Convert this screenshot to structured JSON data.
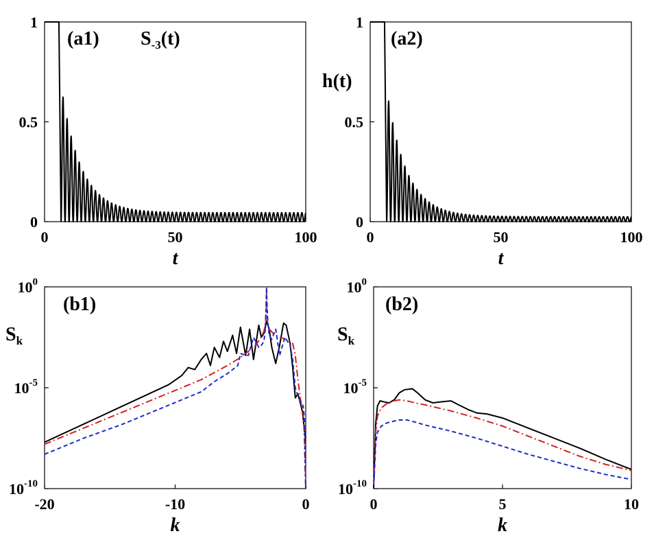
{
  "chart_data": [
    {
      "id": "a1",
      "type": "line",
      "panel_label": "(a1)",
      "inset_label": {
        "base": "S",
        "sub": "-3",
        "suffix": "(t)"
      },
      "ylabel": "",
      "xlabel": "t",
      "xlim": [
        0,
        100
      ],
      "ylim": [
        0,
        1
      ],
      "xticks": [
        {
          "v": 0,
          "t": "0"
        },
        {
          "v": 50,
          "t": "50"
        },
        {
          "v": 100,
          "t": "100"
        }
      ],
      "yticks": [
        {
          "v": 0,
          "t": "0"
        },
        {
          "v": 0.5,
          "t": "0.5"
        },
        {
          "v": 1,
          "t": "1"
        }
      ],
      "signal": {
        "quench_t": 5.5,
        "period": 1.55,
        "amp": 0.64,
        "tau": 7.5,
        "floor": 0.045
      },
      "series": [
        {
          "name": "S-3(t)",
          "color": "#000000"
        }
      ]
    },
    {
      "id": "a2",
      "type": "line",
      "panel_label": "(a2)",
      "ylabel": "h(t)",
      "xlabel": "t",
      "xlim": [
        0,
        100
      ],
      "ylim": [
        0,
        1
      ],
      "xticks": [
        {
          "v": 0,
          "t": "0"
        },
        {
          "v": 50,
          "t": "50"
        },
        {
          "v": 100,
          "t": "100"
        }
      ],
      "yticks": [
        {
          "v": 0,
          "t": "0"
        },
        {
          "v": 0.5,
          "t": "0.5"
        },
        {
          "v": 1,
          "t": "1"
        }
      ],
      "signal": {
        "quench_t": 5.5,
        "period": 1.55,
        "amp": 0.64,
        "tau": 7.5,
        "floor": 0.025
      },
      "series": [
        {
          "name": "h(t)",
          "color": "#000000"
        }
      ]
    },
    {
      "id": "b1",
      "type": "line",
      "panel_label": "(b1)",
      "ylabel": {
        "base": "S",
        "sub": "k"
      },
      "xlabel": "k",
      "yscale": "log",
      "xlim": [
        -20,
        0
      ],
      "ylim": [
        -10,
        0
      ],
      "xticks": [
        {
          "v": -20,
          "t": "-20"
        },
        {
          "v": -10,
          "t": "-10"
        },
        {
          "v": 0,
          "t": "0"
        }
      ],
      "yticks": [
        {
          "v": 0,
          "t": "10",
          "e": "0"
        },
        {
          "v": -5,
          "t": "10",
          "e": "-5"
        },
        {
          "v": -10,
          "t": "10",
          "e": "-10"
        }
      ],
      "series": [
        {
          "name": "black",
          "color": "#000000",
          "dash": "",
          "x": [
            -20,
            -18,
            -16,
            -14,
            -12,
            -10.5,
            -9.5,
            -9,
            -8.5,
            -8,
            -7.6,
            -7.3,
            -7,
            -6.6,
            -6.3,
            -6,
            -5.6,
            -5.3,
            -5,
            -4.6,
            -4.3,
            -4,
            -3.6,
            -3.4,
            -3.2,
            -3,
            -2.8,
            -2.6,
            -2.3,
            -2,
            -1.7,
            -1.5,
            -1.2,
            -1,
            -0.8,
            -0.6,
            -0.4,
            -0.25,
            -0.15,
            -0.05,
            0
          ],
          "y": [
            -7.7,
            -7.1,
            -6.5,
            -5.9,
            -5.3,
            -4.85,
            -4.4,
            -4.0,
            -4.1,
            -3.6,
            -3.3,
            -3.9,
            -3.0,
            -3.5,
            -2.7,
            -3.2,
            -2.4,
            -3.3,
            -2.0,
            -3.4,
            -2.1,
            -3.6,
            -1.9,
            -2.5,
            -2.3,
            -1.7,
            -2.1,
            -3.0,
            -3.8,
            -2.9,
            -1.8,
            -1.9,
            -2.8,
            -4.0,
            -5.5,
            -5.3,
            -5.8,
            -6.2,
            -6.8,
            -7.4,
            -7.5
          ]
        },
        {
          "name": "red",
          "color": "#d42020",
          "dash": "10 4 2 4",
          "x": [
            -20,
            -17,
            -14,
            -11,
            -8,
            -6,
            -5,
            -4,
            -3.5,
            -3.2,
            -3.08,
            -3.02,
            -3,
            -2.98,
            -2.92,
            -2.8,
            -2.5,
            -2,
            -1.5,
            -1,
            -0.8,
            -0.6,
            -0.4,
            -0.2,
            -0.1,
            -0.05,
            0
          ],
          "y": [
            -7.8,
            -7.0,
            -6.2,
            -5.4,
            -4.6,
            -3.9,
            -3.5,
            -3.0,
            -2.6,
            -2.2,
            -1.8,
            -0.8,
            -0.2,
            -0.9,
            -1.8,
            -2.1,
            -2.3,
            -2.5,
            -2.6,
            -2.8,
            -3.4,
            -4.6,
            -5.6,
            -6.2,
            -7.5,
            -9.0,
            -10.0
          ]
        },
        {
          "name": "blue",
          "color": "#1a2cc9",
          "dash": "6 4",
          "x": [
            -20,
            -17,
            -14,
            -11,
            -8,
            -7,
            -6,
            -5.2,
            -5,
            -4.6,
            -4.4,
            -4,
            -3.6,
            -3.4,
            -3.2,
            -3.08,
            -3.02,
            -3,
            -2.98,
            -2.92,
            -2.8,
            -2.6,
            -2.3,
            -2,
            -1.6,
            -1.2,
            -1,
            -0.8,
            -0.6,
            -0.4,
            -0.2,
            -0.1,
            -0.05,
            0
          ],
          "y": [
            -8.3,
            -7.5,
            -6.8,
            -6.0,
            -5.2,
            -4.7,
            -4.3,
            -3.9,
            -3.3,
            -3.4,
            -3.4,
            -2.5,
            -3.0,
            -2.9,
            -2.7,
            -2.0,
            -0.5,
            0.0,
            -0.6,
            -1.6,
            -2.4,
            -2.6,
            -2.1,
            -3.4,
            -2.5,
            -2.9,
            -3.6,
            -5.0,
            -5.4,
            -5.7,
            -5.9,
            -6.5,
            -8.5,
            -10.0
          ]
        }
      ]
    },
    {
      "id": "b2",
      "type": "line",
      "panel_label": "(b2)",
      "ylabel": {
        "base": "S",
        "sub": "k"
      },
      "xlabel": "k",
      "yscale": "log",
      "xlim": [
        0,
        10
      ],
      "ylim": [
        -10,
        0
      ],
      "xticks": [
        {
          "v": 0,
          "t": "0"
        },
        {
          "v": 5,
          "t": "5"
        },
        {
          "v": 10,
          "t": "10"
        }
      ],
      "yticks": [
        {
          "v": 0,
          "t": "10",
          "e": "0"
        },
        {
          "v": -5,
          "t": "10",
          "e": "-5"
        },
        {
          "v": -10,
          "t": "10",
          "e": "-10"
        }
      ],
      "series": [
        {
          "name": "black",
          "color": "#000000",
          "dash": "",
          "x": [
            0,
            0.03,
            0.08,
            0.15,
            0.25,
            0.4,
            0.6,
            0.8,
            1.0,
            1.2,
            1.5,
            1.7,
            2.0,
            2.3,
            2.6,
            3.0,
            3.3,
            3.7,
            4.0,
            4.4,
            5.0,
            6,
            7,
            8,
            9,
            10
          ],
          "y": [
            -10,
            -8.8,
            -6.8,
            -5.9,
            -5.65,
            -5.7,
            -5.75,
            -5.6,
            -5.25,
            -5.1,
            -5.05,
            -5.25,
            -5.6,
            -5.75,
            -5.7,
            -5.65,
            -5.85,
            -6.1,
            -6.25,
            -6.3,
            -6.5,
            -7.0,
            -7.5,
            -8.0,
            -8.55,
            -9.05
          ]
        },
        {
          "name": "red",
          "color": "#d42020",
          "dash": "10 4 2 4",
          "x": [
            0,
            0.03,
            0.08,
            0.15,
            0.3,
            0.5,
            0.8,
            1.0,
            1.3,
            1.6,
            2.0,
            3,
            4,
            5,
            6,
            7,
            8,
            9,
            10
          ],
          "y": [
            -10,
            -9.0,
            -7.2,
            -6.4,
            -6.0,
            -5.8,
            -5.65,
            -5.6,
            -5.65,
            -5.75,
            -5.85,
            -6.15,
            -6.5,
            -6.9,
            -7.4,
            -7.9,
            -8.4,
            -8.8,
            -9.1
          ]
        },
        {
          "name": "blue",
          "color": "#1a2cc9",
          "dash": "6 4",
          "x": [
            0,
            0.03,
            0.08,
            0.15,
            0.3,
            0.5,
            0.8,
            1.0,
            1.3,
            1.6,
            2.0,
            3,
            4,
            5,
            6,
            7,
            8,
            9,
            10
          ],
          "y": [
            -10,
            -9.2,
            -7.8,
            -7.2,
            -6.9,
            -6.75,
            -6.65,
            -6.6,
            -6.6,
            -6.7,
            -6.85,
            -7.15,
            -7.5,
            -7.9,
            -8.3,
            -8.65,
            -9.0,
            -9.3,
            -9.55
          ]
        }
      ]
    }
  ]
}
